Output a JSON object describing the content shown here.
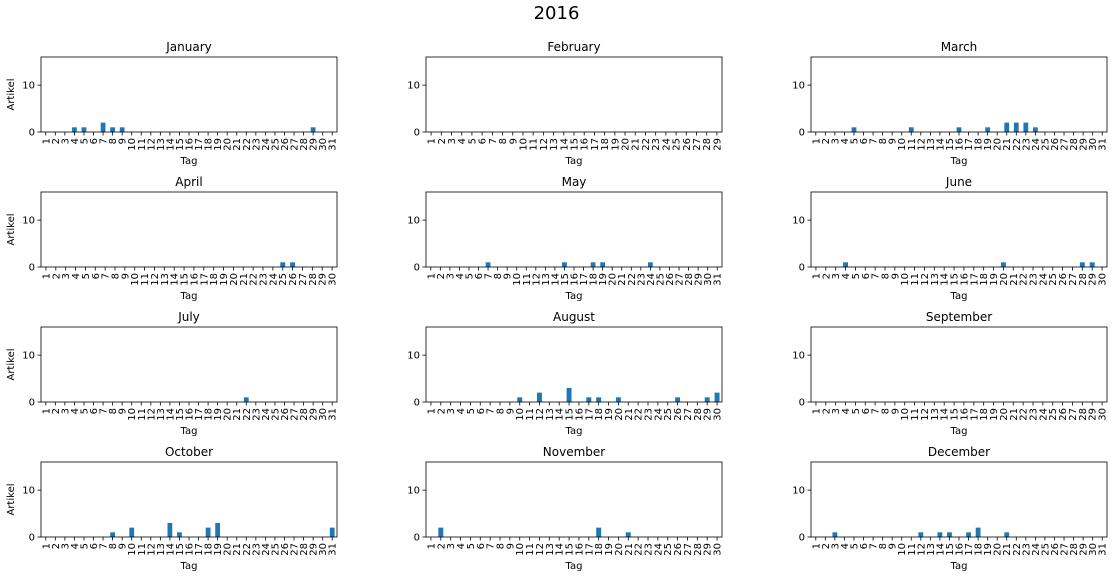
{
  "figure_title": "2016",
  "chart_data": {
    "type": "bar",
    "title": "2016",
    "xlabel": "Tag",
    "ylabel": "Artikel",
    "ylim": [
      0,
      16
    ],
    "yticks": [
      0,
      10
    ],
    "color": "#1f77b4",
    "panels": [
      {
        "title": "January",
        "days": 31,
        "values": {
          "4": 1,
          "5": 1,
          "7": 2,
          "8": 1,
          "9": 1,
          "29": 1
        }
      },
      {
        "title": "February",
        "days": 29,
        "values": {}
      },
      {
        "title": "March",
        "days": 31,
        "values": {
          "5": 1,
          "11": 1,
          "16": 1,
          "19": 1,
          "21": 2,
          "22": 2,
          "23": 2,
          "24": 1
        }
      },
      {
        "title": "April",
        "days": 30,
        "values": {
          "25": 1,
          "26": 1
        }
      },
      {
        "title": "May",
        "days": 31,
        "values": {
          "7": 1,
          "15": 1,
          "18": 1,
          "19": 1,
          "24": 1
        }
      },
      {
        "title": "June",
        "days": 30,
        "values": {
          "4": 1,
          "20": 1,
          "28": 1,
          "29": 1
        }
      },
      {
        "title": "July",
        "days": 31,
        "values": {
          "22": 1
        }
      },
      {
        "title": "August",
        "days": 30,
        "values": {
          "10": 1,
          "12": 2,
          "15": 3,
          "17": 1,
          "18": 1,
          "20": 1,
          "26": 1,
          "29": 1,
          "30": 2
        }
      },
      {
        "title": "September",
        "days": 30,
        "values": {}
      },
      {
        "title": "October",
        "days": 31,
        "values": {
          "8": 1,
          "10": 2,
          "14": 3,
          "15": 1,
          "18": 2,
          "19": 3,
          "31": 2
        }
      },
      {
        "title": "November",
        "days": 30,
        "values": {
          "2": 2,
          "18": 2,
          "21": 1
        }
      },
      {
        "title": "December",
        "days": 31,
        "values": {
          "3": 1,
          "12": 1,
          "14": 1,
          "15": 1,
          "17": 1,
          "18": 2,
          "21": 1
        }
      }
    ]
  }
}
